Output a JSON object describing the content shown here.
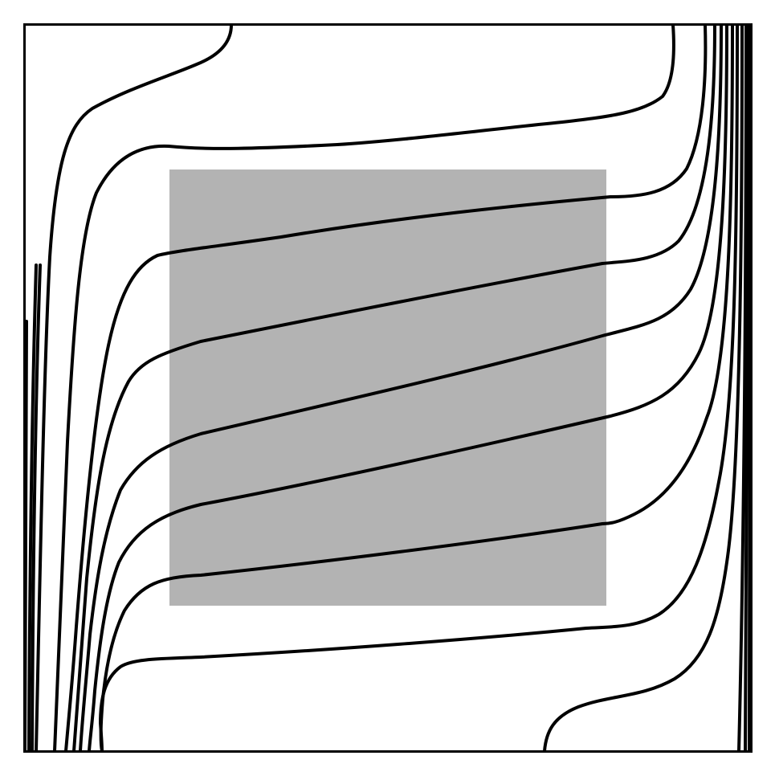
{
  "diagram": {
    "background_color": "#ffffff",
    "frame_color": "#000000",
    "contour_color": "#000000",
    "inner_block_color": "#b3b3b3",
    "contour_line_count": 12
  }
}
